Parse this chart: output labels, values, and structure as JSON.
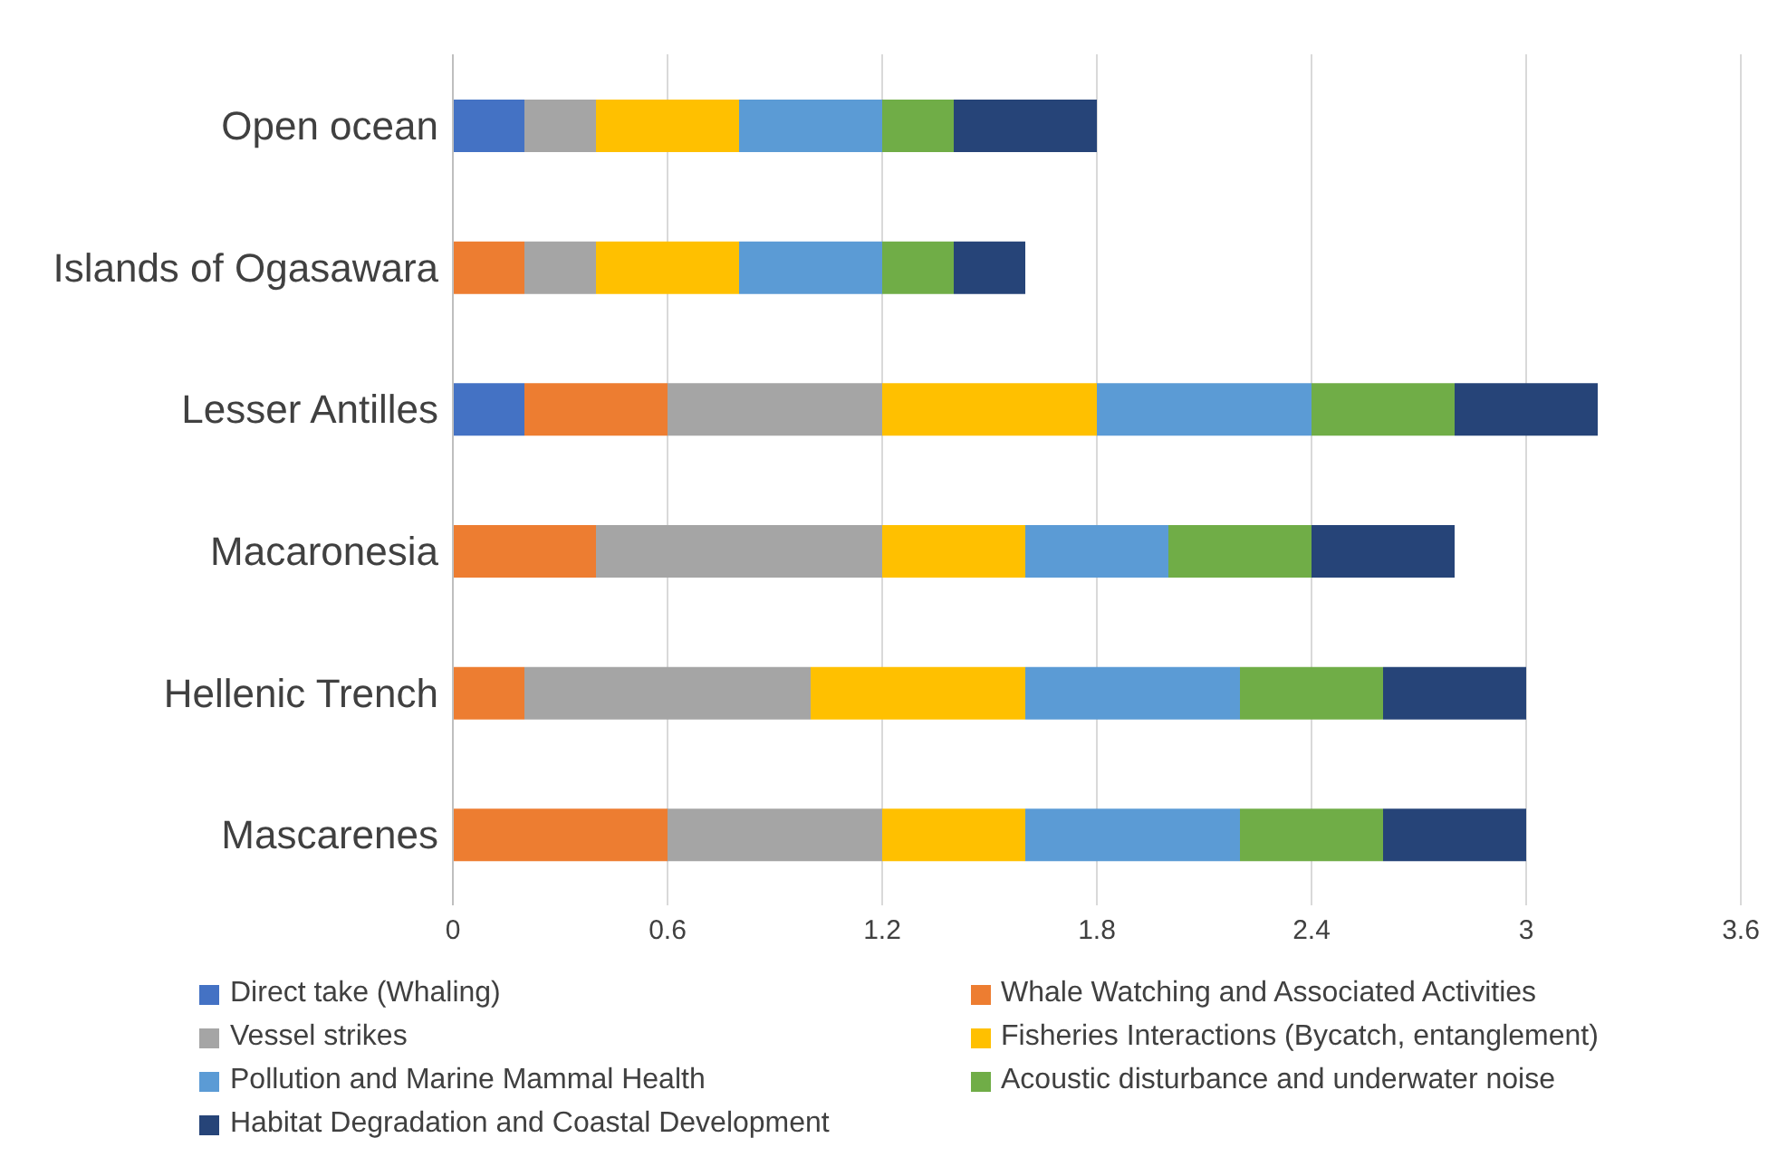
{
  "chart_data": {
    "type": "bar",
    "orientation": "horizontal",
    "stacked": true,
    "categories": [
      "Open ocean",
      "Islands of Ogasawara",
      "Lesser Antilles",
      "Macaronesia",
      "Hellenic Trench",
      "Mascarenes"
    ],
    "series": [
      {
        "name": "Direct take (Whaling)",
        "color": "#4472c4",
        "values": [
          0.2,
          0,
          0.2,
          0,
          0,
          0
        ]
      },
      {
        "name": "Whale Watching and Associated Activities",
        "color": "#ed7d31",
        "values": [
          0,
          0.2,
          0.4,
          0.4,
          0.2,
          0.6
        ]
      },
      {
        "name": "Vessel strikes",
        "color": "#a5a5a5",
        "values": [
          0.2,
          0.2,
          0.6,
          0.8,
          0.8,
          0.6
        ]
      },
      {
        "name": "Fisheries Interactions (Bycatch, entanglement)",
        "color": "#ffc000",
        "values": [
          0.4,
          0.4,
          0.6,
          0.4,
          0.6,
          0.4
        ]
      },
      {
        "name": "Pollution and Marine Mammal Health",
        "color": "#5b9bd5",
        "values": [
          0.4,
          0.4,
          0.6,
          0.4,
          0.6,
          0.6
        ]
      },
      {
        "name": "Acoustic disturbance and underwater noise",
        "color": "#70ad47",
        "values": [
          0.2,
          0.2,
          0.4,
          0.4,
          0.4,
          0.4
        ]
      },
      {
        "name": "Habitat Degradation and Coastal Development",
        "color": "#264478",
        "values": [
          0.4,
          0.2,
          0.4,
          0.4,
          0.4,
          0.4
        ]
      }
    ],
    "xlim": [
      0,
      3.6
    ],
    "xticks": [
      0,
      0.6,
      1.2,
      1.8,
      2.4,
      3,
      3.6
    ],
    "grid": "x",
    "legend": "bottom"
  }
}
